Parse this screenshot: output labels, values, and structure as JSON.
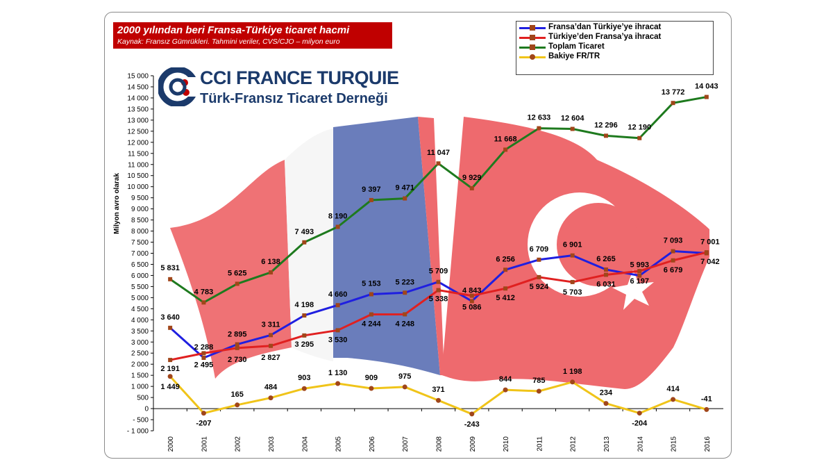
{
  "title": "2000 yılından beri Fransa-Türkiye ticaret hacmi",
  "subtitle": "Kaynak: Fransız Gümrükleri. Tahmini veriler, CVS/CJO – milyon euro",
  "logo": {
    "title": "CCI FRANCE TURQUIE",
    "subtitle": "Türk-Fransız Ticaret Derneği"
  },
  "colors": {
    "blue": "#1f1fe0",
    "red": "#e02020",
    "green": "#1e7a1e",
    "yellow": "#f0c419",
    "marker": "#a0461a",
    "france_blue": "#6a7dbb",
    "flag_red": "#ee6a6e"
  },
  "chart_data": {
    "type": "line",
    "ylabel": "Milyon avro olarak",
    "ylim": [
      -1000,
      15000
    ],
    "ytick_step": 500,
    "yticks": [
      "- 1 000",
      "- 500",
      "0",
      "500",
      "1 000",
      "1 500",
      "2 000",
      "2 500",
      "3 000",
      "3 500",
      "4 000",
      "4 500",
      "5 000",
      "5 500",
      "6 000",
      "6 500",
      "7 000",
      "7 500",
      "8 000",
      "8 500",
      "9 000",
      "9 500",
      "10 000",
      "10 500",
      "11 000",
      "11 500",
      "12 000",
      "12 500",
      "13 000",
      "13 500",
      "14 000",
      "14 500",
      "15 000"
    ],
    "categories": [
      "2000",
      "2001",
      "2002",
      "2003",
      "2004",
      "2005",
      "2006",
      "2007",
      "2008",
      "2009",
      "2010",
      "2011",
      "2012",
      "2013",
      "2014",
      "2015",
      "2016"
    ],
    "legend_position": "top-right",
    "series": [
      {
        "name": "Fransa’dan Türkiye’ye ihracat",
        "key": "blue",
        "values": [
          3640,
          2288,
          2895,
          3311,
          4198,
          4660,
          5153,
          5223,
          5709,
          4843,
          6256,
          6709,
          6901,
          6265,
          5993,
          7093,
          7001
        ],
        "labels": [
          "3 640",
          "2 288",
          "2 895",
          "3 311",
          "4 198",
          "4 660",
          "5 153",
          "5 223",
          "5 709",
          "4 843",
          "6 256",
          "6 709",
          "6 901",
          "6 265",
          "5 993",
          "7 093",
          "7 001"
        ]
      },
      {
        "name": "Türkiye’den Fransa’ya ihracat",
        "key": "red",
        "values": [
          2191,
          2495,
          2730,
          2827,
          3295,
          3530,
          4244,
          4248,
          5338,
          5086,
          5412,
          5924,
          5703,
          6031,
          6197,
          6679,
          7042
        ],
        "labels": [
          "2 191",
          "2 495",
          "2 730",
          "2 827",
          "3 295",
          "3 530",
          "4 244",
          "4 248",
          "5 338",
          "5 086",
          "5 412",
          "5 924",
          "5 703",
          "6 031",
          "6 197",
          "6 679",
          "7 042"
        ]
      },
      {
        "name": "Toplam Ticaret",
        "key": "green",
        "values": [
          5831,
          4783,
          5625,
          6138,
          7493,
          8190,
          9397,
          9471,
          11047,
          9929,
          11668,
          12633,
          12604,
          12296,
          12190,
          13772,
          14043
        ],
        "labels": [
          "5 831",
          "4 783",
          "5 625",
          "6 138",
          "7 493",
          "8 190",
          "9 397",
          "9 471",
          "11 047",
          "9 929",
          "11 668",
          "12 633",
          "12 604",
          "12 296",
          "12 190",
          "13 772",
          "14 043"
        ]
      },
      {
        "name": "Bakiye FR/TR",
        "key": "yellow",
        "values": [
          1449,
          -207,
          165,
          484,
          903,
          1130,
          909,
          975,
          371,
          -243,
          844,
          785,
          1198,
          234,
          -204,
          414,
          -41
        ],
        "labels": [
          "1 449",
          "-207",
          "165",
          "484",
          "903",
          "1 130",
          "909",
          "975",
          "371",
          "-243",
          "844",
          "785",
          "1 198",
          "234",
          "-204",
          "414",
          "-41"
        ]
      }
    ]
  }
}
